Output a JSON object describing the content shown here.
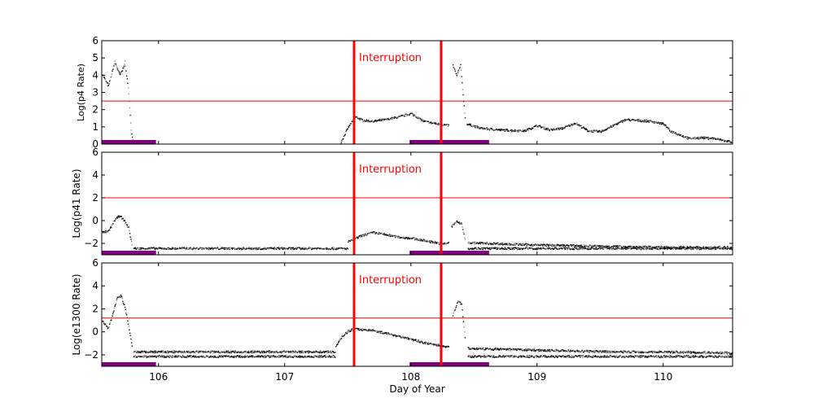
{
  "chart_data": {
    "type": "scatter",
    "xlabel": "Day of Year",
    "xlim": [
      105.55,
      110.55
    ],
    "xticks": [
      106,
      107,
      108,
      109,
      110
    ],
    "xtick_labels": [
      "106",
      "107",
      "108",
      "109",
      "110"
    ],
    "interruption": {
      "label": "Interruption",
      "x_start": 107.55,
      "x_end": 108.24,
      "color": "#ff0000"
    },
    "purple_bars": [
      [
        105.55,
        105.98
      ],
      [
        107.99,
        108.62
      ]
    ],
    "purple_color": "#800080",
    "panels": [
      {
        "ylabel": "Log(p4 Rate)",
        "ylim": [
          0,
          6
        ],
        "yticks": [
          0,
          1,
          2,
          3,
          4,
          5,
          6
        ],
        "ytick_labels": [
          "0",
          "1",
          "2",
          "3",
          "4",
          "5",
          "6"
        ],
        "threshold": 2.5,
        "series": [
          {
            "x": [
              105.55,
              105.6,
              105.65,
              105.69,
              105.71,
              105.73,
              105.76,
              105.78,
              105.8
            ],
            "y": [
              4.1,
              3.4,
              4.8,
              4.05,
              4.3,
              4.8,
              3.0,
              0.8,
              0
            ]
          },
          {
            "x": [
              107.44,
              107.5,
              107.56,
              107.62,
              107.7,
              107.8,
              107.9,
              108.0,
              108.1,
              108.2,
              108.26,
              108.3
            ],
            "y": [
              0.1,
              1.0,
              1.6,
              1.4,
              1.35,
              1.45,
              1.6,
              1.8,
              1.35,
              1.2,
              1.15,
              1.1
            ]
          },
          {
            "x": [
              108.33,
              108.36,
              108.39,
              108.43
            ],
            "y": [
              4.6,
              4.0,
              4.6,
              1.2
            ]
          },
          {
            "x": [
              108.44,
              108.55,
              108.7,
              108.9,
              109.0,
              109.1,
              109.2,
              109.3,
              109.4,
              109.5,
              109.7,
              109.8,
              109.9,
              110.0,
              110.05,
              110.2,
              110.3,
              110.4,
              110.5,
              110.55
            ],
            "y": [
              1.2,
              0.95,
              0.85,
              0.8,
              1.1,
              0.85,
              0.95,
              1.25,
              0.8,
              0.75,
              1.45,
              1.4,
              1.35,
              1.2,
              0.8,
              0.35,
              0.4,
              0.35,
              0.2,
              0.15
            ]
          }
        ]
      },
      {
        "ylabel": "Log(p41 Rate)",
        "ylim": [
          -3,
          6
        ],
        "yticks": [
          -2,
          0,
          2,
          4,
          6
        ],
        "ytick_labels": [
          "−2",
          "0",
          "2",
          "4",
          "6"
        ],
        "threshold": 2.0,
        "series": [
          {
            "x": [
              105.55,
              105.6,
              105.65,
              105.69,
              105.72,
              105.76,
              105.79
            ],
            "y": [
              -1.0,
              -0.9,
              0.1,
              0.5,
              0.1,
              -0.6,
              -2.3
            ]
          },
          {
            "x": [
              105.8,
              106.5,
              107.0,
              107.45,
              107.5
            ],
            "y": [
              -2.4,
              -2.4,
              -2.4,
              -2.4,
              -2.4
            ]
          },
          {
            "x": [
              107.5,
              107.55,
              107.6,
              107.7,
              107.8,
              107.9,
              108.0,
              108.1,
              108.2,
              108.25,
              108.3
            ],
            "y": [
              -1.8,
              -1.6,
              -1.3,
              -1.0,
              -1.2,
              -1.4,
              -1.5,
              -1.7,
              -1.9,
              -2.0,
              -1.9
            ]
          },
          {
            "x": [
              108.32,
              108.36,
              108.4,
              108.43
            ],
            "y": [
              -0.5,
              0.0,
              -0.3,
              -1.8
            ]
          },
          {
            "x": [
              108.45,
              109.0,
              109.5,
              110.0,
              110.55
            ],
            "y": [
              -1.9,
              -2.1,
              -2.2,
              -2.3,
              -2.3
            ]
          },
          {
            "x": [
              108.45,
              109.0,
              109.5,
              110.0,
              110.55
            ],
            "y": [
              -2.4,
              -2.4,
              -2.4,
              -2.4,
              -2.4
            ]
          }
        ]
      },
      {
        "ylabel": "Log(e1300 Rate)",
        "ylim": [
          -3,
          6
        ],
        "yticks": [
          -2,
          0,
          2,
          4,
          6
        ],
        "ytick_labels": [
          "−2",
          "0",
          "2",
          "4",
          "6"
        ],
        "threshold": 1.2,
        "series": [
          {
            "x": [
              105.55,
              105.6,
              105.63,
              105.67,
              105.7,
              105.73,
              105.76,
              105.79
            ],
            "y": [
              1.0,
              0.3,
              1.5,
              3.0,
              3.2,
              2.2,
              0.5,
              -1.5
            ]
          },
          {
            "x": [
              105.8,
              106.2,
              106.6,
              107.0,
              107.4
            ],
            "y": [
              -1.7,
              -1.7,
              -1.7,
              -1.7,
              -1.7
            ]
          },
          {
            "x": [
              105.8,
              106.2,
              106.6,
              107.0,
              107.4
            ],
            "y": [
              -2.1,
              -2.1,
              -2.1,
              -2.1,
              -2.1
            ]
          },
          {
            "x": [
              107.4,
              107.45,
              107.5,
              107.55,
              107.7,
              107.85,
              108.0,
              108.1,
              108.2,
              108.3
            ],
            "y": [
              -1.2,
              -0.4,
              0.1,
              0.3,
              0.15,
              -0.2,
              -0.6,
              -0.9,
              -1.1,
              -1.3
            ]
          },
          {
            "x": [
              108.33,
              108.37,
              108.4,
              108.43
            ],
            "y": [
              1.5,
              2.8,
              2.4,
              -1.0
            ]
          },
          {
            "x": [
              108.45,
              108.8,
              109.2,
              109.6,
              110.0,
              110.55
            ],
            "y": [
              -1.4,
              -1.5,
              -1.6,
              -1.7,
              -1.7,
              -1.8
            ]
          },
          {
            "x": [
              108.45,
              108.8,
              109.2,
              109.6,
              110.0,
              110.55
            ],
            "y": [
              -2.1,
              -2.1,
              -2.1,
              -2.1,
              -2.1,
              -2.1
            ]
          }
        ]
      }
    ]
  }
}
